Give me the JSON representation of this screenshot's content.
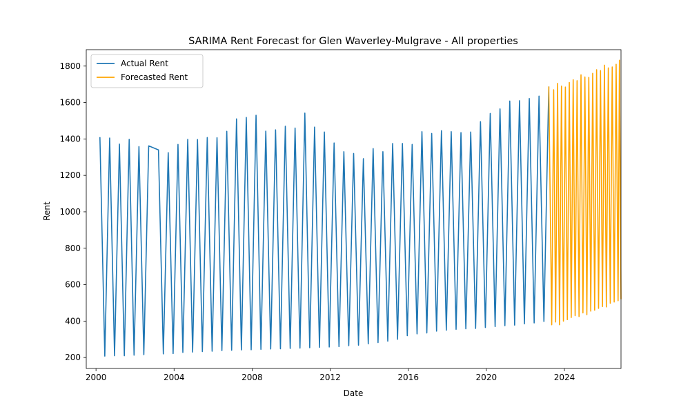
{
  "chart_data": {
    "type": "line",
    "title": "SARIMA Rent Forecast for Glen Waverley-Mulgrave - All properties",
    "xlabel": "Date",
    "ylabel": "Rent",
    "xlim": [
      1999.5,
      2026.9
    ],
    "ylim": [
      140,
      1890
    ],
    "x_ticks": [
      2000,
      2004,
      2008,
      2012,
      2016,
      2020,
      2024
    ],
    "y_ticks": [
      200,
      400,
      600,
      800,
      1000,
      1200,
      1400,
      1600,
      1800
    ],
    "grid": false,
    "legend_position": "top-left",
    "series": [
      {
        "name": "Actual Rent",
        "color": "#1f77b4",
        "points": [
          [
            2000.2,
            1410
          ],
          [
            2000.45,
            208
          ],
          [
            2000.7,
            1405
          ],
          [
            2000.95,
            210
          ],
          [
            2001.2,
            1372
          ],
          [
            2001.45,
            210
          ],
          [
            2001.7,
            1398
          ],
          [
            2001.95,
            213
          ],
          [
            2002.2,
            1358
          ],
          [
            2002.45,
            216
          ],
          [
            2002.7,
            1362
          ],
          [
            2003.2,
            1340
          ],
          [
            2003.45,
            220
          ],
          [
            2003.7,
            1325
          ],
          [
            2003.95,
            222
          ],
          [
            2004.2,
            1370
          ],
          [
            2004.45,
            228
          ],
          [
            2004.7,
            1398
          ],
          [
            2004.95,
            230
          ],
          [
            2005.2,
            1397
          ],
          [
            2005.45,
            233
          ],
          [
            2005.7,
            1408
          ],
          [
            2005.95,
            235
          ],
          [
            2006.2,
            1407
          ],
          [
            2006.45,
            238
          ],
          [
            2006.7,
            1442
          ],
          [
            2006.95,
            240
          ],
          [
            2007.2,
            1510
          ],
          [
            2007.45,
            242
          ],
          [
            2007.7,
            1518
          ],
          [
            2007.95,
            243
          ],
          [
            2008.2,
            1530
          ],
          [
            2008.45,
            245
          ],
          [
            2008.7,
            1443
          ],
          [
            2008.95,
            247
          ],
          [
            2009.2,
            1450
          ],
          [
            2009.45,
            248
          ],
          [
            2009.7,
            1470
          ],
          [
            2009.95,
            250
          ],
          [
            2010.2,
            1460
          ],
          [
            2010.45,
            252
          ],
          [
            2010.7,
            1542
          ],
          [
            2010.95,
            254
          ],
          [
            2011.2,
            1465
          ],
          [
            2011.45,
            256
          ],
          [
            2011.7,
            1438
          ],
          [
            2011.95,
            258
          ],
          [
            2012.2,
            1378
          ],
          [
            2012.45,
            260
          ],
          [
            2012.7,
            1330
          ],
          [
            2012.95,
            265
          ],
          [
            2013.2,
            1320
          ],
          [
            2013.45,
            268
          ],
          [
            2013.7,
            1292
          ],
          [
            2013.95,
            275
          ],
          [
            2014.2,
            1347
          ],
          [
            2014.45,
            282
          ],
          [
            2014.7,
            1330
          ],
          [
            2014.95,
            290
          ],
          [
            2015.2,
            1375
          ],
          [
            2015.45,
            300
          ],
          [
            2015.7,
            1375
          ],
          [
            2015.95,
            320
          ],
          [
            2016.2,
            1370
          ],
          [
            2016.45,
            330
          ],
          [
            2016.7,
            1440
          ],
          [
            2016.95,
            335
          ],
          [
            2017.2,
            1430
          ],
          [
            2017.45,
            345
          ],
          [
            2017.7,
            1445
          ],
          [
            2017.95,
            350
          ],
          [
            2018.2,
            1440
          ],
          [
            2018.45,
            355
          ],
          [
            2018.7,
            1435
          ],
          [
            2018.95,
            358
          ],
          [
            2019.2,
            1438
          ],
          [
            2019.45,
            360
          ],
          [
            2019.7,
            1495
          ],
          [
            2019.95,
            365
          ],
          [
            2020.2,
            1540
          ],
          [
            2020.45,
            370
          ],
          [
            2020.7,
            1565
          ],
          [
            2020.95,
            375
          ],
          [
            2021.2,
            1608
          ],
          [
            2021.45,
            378
          ],
          [
            2021.7,
            1610
          ],
          [
            2021.95,
            385
          ],
          [
            2022.2,
            1622
          ],
          [
            2022.45,
            390
          ],
          [
            2022.7,
            1635
          ],
          [
            2022.95,
            398
          ],
          [
            2023.2,
            1688
          ]
        ]
      },
      {
        "name": "Forecasted Rent",
        "color": "#ffa500",
        "points": [
          [
            2023.2,
            1688
          ],
          [
            2023.35,
            380
          ],
          [
            2023.45,
            1670
          ],
          [
            2023.55,
            395
          ],
          [
            2023.65,
            1705
          ],
          [
            2023.75,
            380
          ],
          [
            2023.85,
            1690
          ],
          [
            2023.95,
            400
          ],
          [
            2024.05,
            1685
          ],
          [
            2024.15,
            408
          ],
          [
            2024.25,
            1710
          ],
          [
            2024.35,
            420
          ],
          [
            2024.45,
            1725
          ],
          [
            2024.55,
            430
          ],
          [
            2024.65,
            1720
          ],
          [
            2024.75,
            425
          ],
          [
            2024.85,
            1752
          ],
          [
            2024.95,
            445
          ],
          [
            2025.05,
            1740
          ],
          [
            2025.15,
            435
          ],
          [
            2025.25,
            1738
          ],
          [
            2025.35,
            455
          ],
          [
            2025.45,
            1760
          ],
          [
            2025.55,
            460
          ],
          [
            2025.65,
            1780
          ],
          [
            2025.75,
            470
          ],
          [
            2025.85,
            1775
          ],
          [
            2025.95,
            480
          ],
          [
            2026.05,
            1805
          ],
          [
            2026.15,
            478
          ],
          [
            2026.25,
            1790
          ],
          [
            2026.35,
            498
          ],
          [
            2026.45,
            1795
          ],
          [
            2026.55,
            505
          ],
          [
            2026.65,
            1810
          ],
          [
            2026.75,
            512
          ],
          [
            2026.82,
            1832
          ],
          [
            2026.9,
            520
          ]
        ]
      }
    ]
  }
}
